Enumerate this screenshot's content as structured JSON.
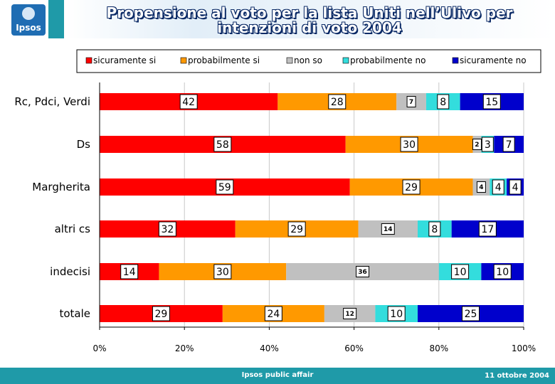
{
  "header": {
    "logo_text": "Ipsos",
    "title_line1": "Propensione al voto per la lista Uniti nell’Ulivo per",
    "title_line2": "intenzioni di voto 2004"
  },
  "footer": {
    "center_text": "Ipsos public affair",
    "date": "11 ottobre 2004"
  },
  "colors": {
    "sicuramente_si": "#ff0000",
    "probabilmente_si": "#ff9900",
    "non_so": "#c0c0c0",
    "probabilmente_no": "#33dddd",
    "sicuramente_no": "#0000cc",
    "teal": "#1f9aa8"
  },
  "chart_data": {
    "type": "bar",
    "orientation": "horizontal",
    "stacked": "percent",
    "categories": [
      "Rc, Pdci, Verdi",
      "Ds",
      "Margherita",
      "altri cs",
      "indecisi",
      "totale"
    ],
    "series": [
      {
        "name": "sicuramente si",
        "values": [
          42,
          58,
          59,
          32,
          14,
          29
        ]
      },
      {
        "name": "probabilmente si",
        "values": [
          28,
          30,
          29,
          29,
          30,
          24
        ]
      },
      {
        "name": "non so",
        "values": [
          7,
          2,
          4,
          14,
          36,
          12
        ]
      },
      {
        "name": "probabilmente no",
        "values": [
          8,
          3,
          4,
          8,
          10,
          10
        ]
      },
      {
        "name": "sicuramente no",
        "values": [
          15,
          7,
          4,
          17,
          10,
          25
        ]
      }
    ],
    "x_ticks": [
      "0%",
      "20%",
      "40%",
      "60%",
      "80%",
      "100%"
    ],
    "xlim": [
      0,
      100
    ],
    "legend_position": "top",
    "grid": "vertical"
  }
}
